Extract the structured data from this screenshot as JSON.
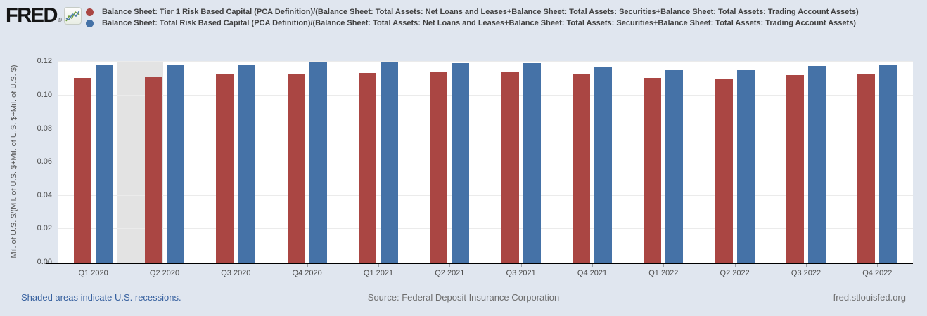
{
  "header": {
    "logo_text": "FRED",
    "logo_reg": "®"
  },
  "chart_data": {
    "type": "bar",
    "categories": [
      "Q1 2020",
      "Q2 2020",
      "Q3 2020",
      "Q4 2020",
      "Q1 2021",
      "Q2 2021",
      "Q3 2021",
      "Q4 2021",
      "Q1 2022",
      "Q2 2022",
      "Q3 2022",
      "Q4 2022"
    ],
    "series": [
      {
        "name": "Balance Sheet: Tier 1 Risk Based Capital (PCA Definition)/(Balance Sheet: Total Assets: Net Loans and Leases+Balance Sheet: Total Assets: Securities+Balance Sheet: Total Assets: Trading Account Assets)",
        "color": "#aa4643",
        "values": [
          0.1105,
          0.111,
          0.1125,
          0.113,
          0.1135,
          0.114,
          0.1145,
          0.1125,
          0.1105,
          0.11,
          0.112,
          0.1125
        ]
      },
      {
        "name": "Balance Sheet: Total Risk Based Capital (PCA Definition)/(Balance Sheet: Total Assets: Net Loans and Leases+Balance Sheet: Total Assets: Securities+Balance Sheet: Total Assets: Trading Account Assets)",
        "color": "#4572a7",
        "values": [
          0.118,
          0.118,
          0.1185,
          0.12,
          0.12,
          0.1195,
          0.1195,
          0.117,
          0.1155,
          0.1155,
          0.1175,
          0.118
        ]
      }
    ],
    "title": "",
    "xlabel": "",
    "ylabel": "Mil. of U.S. $/(Mil. of U.S. $+Mil. of U.S. $+Mil. of U.S. $)",
    "ylim": [
      0,
      0.1206
    ],
    "yticks": [
      0,
      0.02,
      0.04,
      0.06,
      0.08,
      0.1,
      0.12
    ],
    "grid": true,
    "legend_position": "top",
    "recessions": [
      {
        "from_quarter": 0.84,
        "to_quarter": 1.48
      }
    ]
  },
  "footer": {
    "recession_note": "Shaded areas indicate U.S. recessions.",
    "source": "Source: Federal Deposit Insurance Corporation",
    "site": "fred.stlouisfed.org"
  },
  "colors": {
    "tier1_red": "#aa4643",
    "total_blue": "#4572a7",
    "recession_gray": "#e3e3e3",
    "link_blue": "#36609f",
    "background": "#e0e6ef"
  }
}
